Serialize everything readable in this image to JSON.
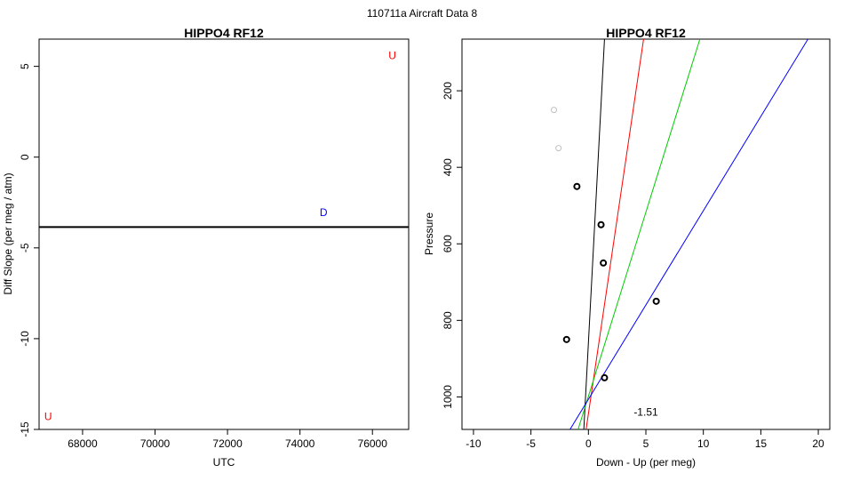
{
  "figure": {
    "title": "110711a   Aircraft Data 8"
  },
  "chart_data": [
    {
      "type": "scatter",
      "title": "HIPPO4 RF12",
      "xlabel": "UTC",
      "ylabel": "Diff Slope (per meg / atm)",
      "xlim": [
        66800,
        77000
      ],
      "ylim": [
        -15,
        6.5
      ],
      "xticks": [
        68000,
        70000,
        72000,
        74000,
        76000
      ],
      "yticks": [
        -15,
        -10,
        -5,
        0,
        5
      ],
      "hline": -3.85,
      "points": [
        {
          "x": 67050,
          "y": -14.3,
          "label": "U",
          "color": "#ff0000"
        },
        {
          "x": 74650,
          "y": -3.05,
          "label": "D",
          "color": "#0000ff"
        },
        {
          "x": 76550,
          "y": 5.6,
          "label": "U",
          "color": "#ff0000"
        }
      ]
    },
    {
      "type": "scatter",
      "title": "HIPPO4 RF12",
      "xlabel": "Down - Up (per meg)",
      "ylabel": "Pressure",
      "xlim": [
        -11,
        21
      ],
      "ylim": [
        1085,
        65
      ],
      "xticks": [
        -10,
        -5,
        0,
        5,
        10,
        15,
        20
      ],
      "yticks": [
        200,
        400,
        600,
        800,
        1000
      ],
      "annotation": {
        "text": "-1.51",
        "x": 5,
        "y": 1040
      },
      "points": [
        {
          "x": -3.0,
          "y": 250,
          "color": "#c0c0c0"
        },
        {
          "x": -2.6,
          "y": 350,
          "color": "#c0c0c0"
        },
        {
          "x": -1.0,
          "y": 450,
          "color": "#000000"
        },
        {
          "x": 1.1,
          "y": 550,
          "color": "#000000"
        },
        {
          "x": 1.3,
          "y": 650,
          "color": "#000000"
        },
        {
          "x": 5.9,
          "y": 750,
          "color": "#000000"
        },
        {
          "x": -1.9,
          "y": 850,
          "color": "#000000"
        },
        {
          "x": 1.4,
          "y": 950,
          "color": "#000000"
        }
      ],
      "lines": [
        {
          "color": "#000000",
          "from": [
            -0.4,
            1085
          ],
          "to": [
            1.4,
            65
          ]
        },
        {
          "color": "#ff0000",
          "from": [
            -0.2,
            1085
          ],
          "to": [
            4.8,
            65
          ]
        },
        {
          "color": "#00cc00",
          "from": [
            -0.9,
            1085
          ],
          "to": [
            9.7,
            65
          ]
        },
        {
          "color": "#0000ff",
          "from": [
            -1.6,
            1085
          ],
          "to": [
            19.1,
            65
          ]
        }
      ]
    }
  ]
}
